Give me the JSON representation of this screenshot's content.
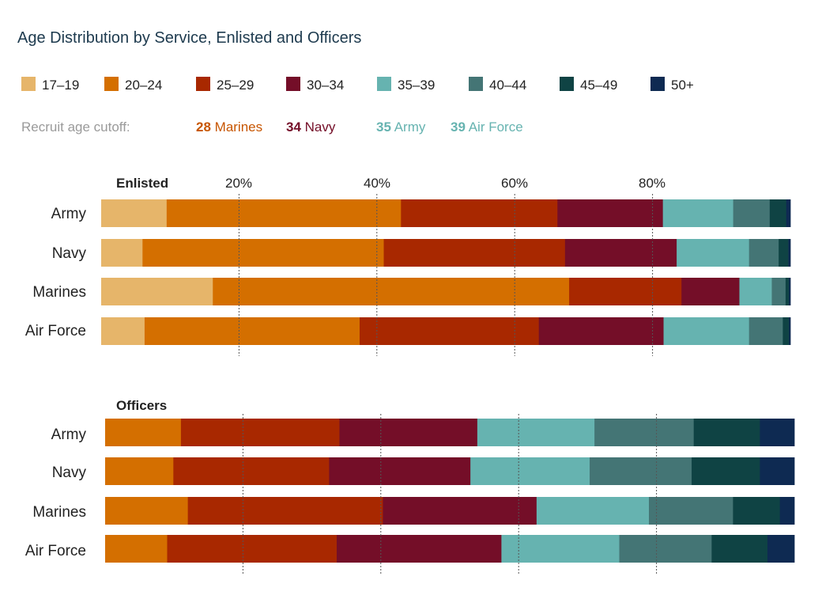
{
  "title": "Age Distribution by Service, Enlisted and Officers",
  "legend": [
    {
      "label": "17–19",
      "color": "#e6b56a"
    },
    {
      "label": "20–24",
      "color": "#d46f00"
    },
    {
      "label": "25–29",
      "color": "#a82800"
    },
    {
      "label": "30–34",
      "color": "#740e28"
    },
    {
      "label": "35–39",
      "color": "#66b3b0"
    },
    {
      "label": "40–44",
      "color": "#447575"
    },
    {
      "label": "45–49",
      "color": "#0f4344"
    },
    {
      "label": "50+",
      "color": "#0e2a52"
    }
  ],
  "cutoffs": {
    "label": "Recruit age cutoff:",
    "items": [
      {
        "num": "28",
        "name": "Marines",
        "color": "#c75500"
      },
      {
        "num": "34",
        "name": "Navy",
        "color": "#740e28"
      },
      {
        "num": "35",
        "name": "Army",
        "color": "#66b3b0"
      },
      {
        "num": "39",
        "name": "Air Force",
        "color": "#66b3b0"
      }
    ]
  },
  "chart_data": [
    {
      "type": "bar",
      "orientation": "horizontal",
      "stacked": true,
      "title": "Enlisted",
      "categories": [
        "Army",
        "Navy",
        "Marines",
        "Air Force"
      ],
      "x_ticks": [
        "20%",
        "40%",
        "60%",
        "80%"
      ],
      "xlim": [
        0,
        100
      ],
      "series": [
        {
          "name": "17–19",
          "values": [
            9.5,
            6.0,
            16.2,
            6.3
          ]
        },
        {
          "name": "20–24",
          "values": [
            34.0,
            35.0,
            51.7,
            31.2
          ]
        },
        {
          "name": "25–29",
          "values": [
            22.7,
            26.3,
            16.3,
            26.0
          ]
        },
        {
          "name": "30–34",
          "values": [
            15.3,
            16.2,
            8.4,
            18.1
          ]
        },
        {
          "name": "35–39",
          "values": [
            10.2,
            10.5,
            4.7,
            12.4
          ]
        },
        {
          "name": "40–44",
          "values": [
            5.3,
            4.3,
            2.0,
            4.9
          ]
        },
        {
          "name": "45–49",
          "values": [
            2.4,
            1.4,
            0.5,
            0.9
          ]
        },
        {
          "name": "50+",
          "values": [
            0.6,
            0.3,
            0.2,
            0.2
          ]
        }
      ]
    },
    {
      "type": "bar",
      "orientation": "horizontal",
      "stacked": true,
      "title": "Officers",
      "categories": [
        "Army",
        "Navy",
        "Marines",
        "Air Force"
      ],
      "xlim": [
        0,
        100
      ],
      "series": [
        {
          "name": "17–19",
          "values": [
            0,
            0,
            0,
            0
          ]
        },
        {
          "name": "20–24",
          "values": [
            11.0,
            9.9,
            12.0,
            9.0
          ]
        },
        {
          "name": "25–29",
          "values": [
            23.0,
            22.6,
            28.3,
            24.6
          ]
        },
        {
          "name": "30–34",
          "values": [
            20.0,
            20.5,
            22.3,
            23.9
          ]
        },
        {
          "name": "35–39",
          "values": [
            17.0,
            17.3,
            16.3,
            17.1
          ]
        },
        {
          "name": "40–44",
          "values": [
            14.4,
            14.8,
            12.2,
            13.4
          ]
        },
        {
          "name": "45–49",
          "values": [
            9.6,
            9.9,
            6.8,
            8.1
          ]
        },
        {
          "name": "50+",
          "values": [
            5.0,
            5.0,
            2.1,
            3.9
          ]
        }
      ]
    }
  ]
}
